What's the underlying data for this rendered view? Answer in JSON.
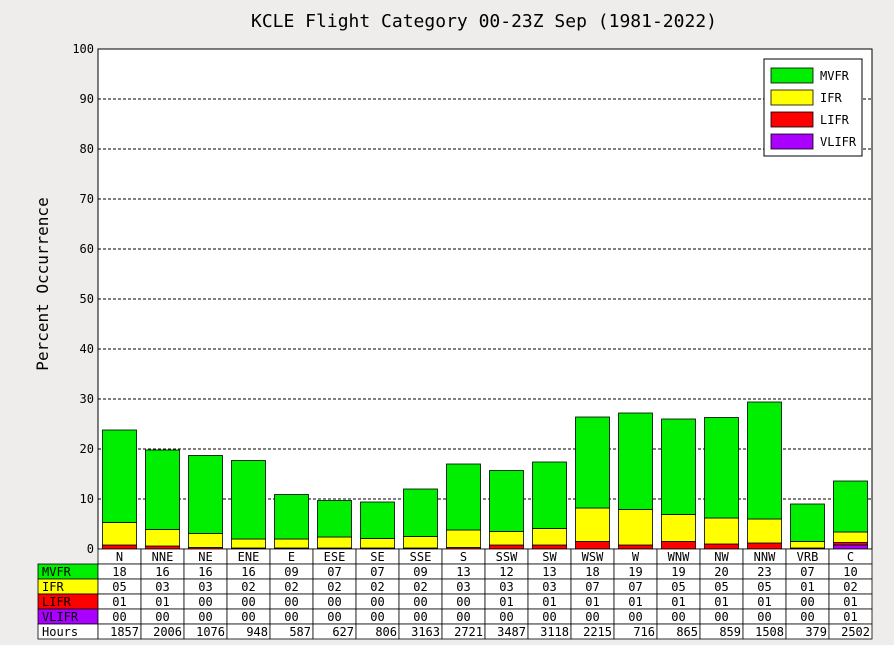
{
  "chart_data": {
    "type": "bar",
    "stacked": true,
    "title": "KCLE Flight Category 00-23Z Sep (1981-2022)",
    "xlabel": "",
    "ylabel": "Percent Occurrence",
    "ylim": [
      0,
      100
    ],
    "yticks": [
      0,
      10,
      20,
      30,
      40,
      50,
      60,
      70,
      80,
      90,
      100
    ],
    "grid": true,
    "legend_position": "top-right",
    "categories": [
      "N",
      "NNE",
      "NE",
      "ENE",
      "E",
      "ESE",
      "SE",
      "SSE",
      "S",
      "SSW",
      "SW",
      "WSW",
      "W",
      "WNW",
      "NW",
      "NNW",
      "VRB",
      "C"
    ],
    "series": [
      {
        "name": "VLIFR",
        "color": "#aa00ff",
        "values": [
          0,
          0,
          0,
          0,
          0,
          0,
          0,
          0,
          0,
          0,
          0,
          0,
          0,
          0,
          0,
          0,
          0,
          0.8
        ]
      },
      {
        "name": "LIFR",
        "color": "#ff0000",
        "values": [
          0.8,
          0.6,
          0.3,
          0.2,
          0.2,
          0.2,
          0.2,
          0.2,
          0.3,
          0.8,
          0.8,
          1.5,
          0.8,
          1.5,
          1.0,
          1.2,
          0.2,
          0.5
        ]
      },
      {
        "name": "IFR",
        "color": "#ffff00",
        "values": [
          4.5,
          3.3,
          2.8,
          1.8,
          1.8,
          2.2,
          1.9,
          2.3,
          3.5,
          2.7,
          3.3,
          6.7,
          7.1,
          5.4,
          5.2,
          4.8,
          1.3,
          2.1
        ]
      },
      {
        "name": "MVFR",
        "color": "#00ee00",
        "values": [
          18.5,
          15.9,
          15.6,
          15.7,
          8.9,
          7.3,
          7.3,
          9.5,
          13.2,
          12.2,
          13.3,
          18.2,
          19.3,
          19.1,
          20.1,
          23.4,
          7.5,
          10.2
        ]
      }
    ],
    "legend": [
      {
        "name": "MVFR",
        "color": "#00ee00"
      },
      {
        "name": "IFR",
        "color": "#ffff00"
      },
      {
        "name": "LIFR",
        "color": "#ff0000"
      },
      {
        "name": "VLIFR",
        "color": "#aa00ff"
      }
    ],
    "table": {
      "rows": [
        {
          "label": "MVFR",
          "color": "#00ee00",
          "values": [
            "18",
            "16",
            "16",
            "16",
            "09",
            "07",
            "07",
            "09",
            "13",
            "12",
            "13",
            "18",
            "19",
            "19",
            "20",
            "23",
            "07",
            "10"
          ]
        },
        {
          "label": "IFR",
          "color": "#ffff00",
          "values": [
            "05",
            "03",
            "03",
            "02",
            "02",
            "02",
            "02",
            "02",
            "03",
            "03",
            "03",
            "07",
            "07",
            "05",
            "05",
            "05",
            "01",
            "02"
          ]
        },
        {
          "label": "LIFR",
          "color": "#ff0000",
          "values": [
            "01",
            "01",
            "00",
            "00",
            "00",
            "00",
            "00",
            "00",
            "00",
            "01",
            "01",
            "01",
            "01",
            "01",
            "01",
            "01",
            "00",
            "01"
          ]
        },
        {
          "label": "VLIFR",
          "color": "#aa00ff",
          "values": [
            "00",
            "00",
            "00",
            "00",
            "00",
            "00",
            "00",
            "00",
            "00",
            "00",
            "00",
            "00",
            "00",
            "00",
            "00",
            "00",
            "00",
            "01"
          ]
        },
        {
          "label": "Hours",
          "color": "#ffffff",
          "values": [
            "1857",
            "2006",
            "1076",
            "948",
            "587",
            "627",
            "806",
            "3163",
            "2721",
            "3487",
            "3118",
            "2215",
            "716",
            "865",
            "859",
            "1508",
            "379",
            "2502"
          ]
        }
      ]
    }
  }
}
